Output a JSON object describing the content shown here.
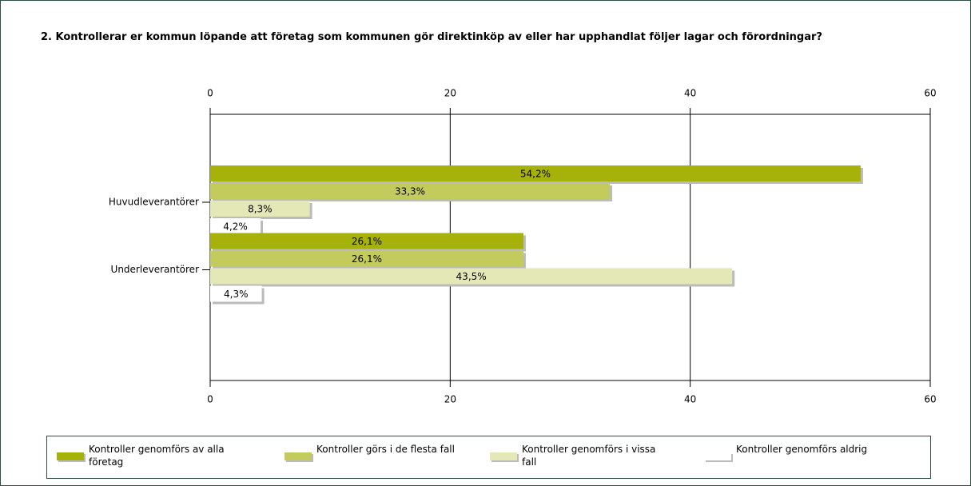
{
  "chart_data": {
    "type": "hbar",
    "title": "2. Kontrollerar er kommun löpande att företag som kommunen gör direktinköp av eller har upphandlat följer lagar och förordningar?",
    "categories": [
      "Huvudleverantörer",
      "Underleverantörer"
    ],
    "series": [
      {
        "name": "Kontroller genomförs av alla företag",
        "color": "#a6b10a",
        "values": [
          54.2,
          26.1
        ],
        "value_labels": [
          "54,2%",
          "26,1%"
        ]
      },
      {
        "name": "Kontroller görs i de flesta fall",
        "color": "#c3cb5c",
        "values": [
          33.3,
          26.1
        ],
        "value_labels": [
          "33,3%",
          "26,1%"
        ]
      },
      {
        "name": "Kontroller genomförs i vissa fall",
        "color": "#e4e8b6",
        "values": [
          8.3,
          43.5
        ],
        "value_labels": [
          "8,3%",
          "43,5%"
        ]
      },
      {
        "name": "Kontroller genomförs aldrig",
        "color": "#ffffff",
        "values": [
          4.2,
          4.3
        ],
        "value_labels": [
          "4,2%",
          "4,3%"
        ]
      }
    ],
    "xlim": [
      0,
      60
    ],
    "xticks": [
      0,
      20,
      40,
      60
    ],
    "grid": true
  }
}
